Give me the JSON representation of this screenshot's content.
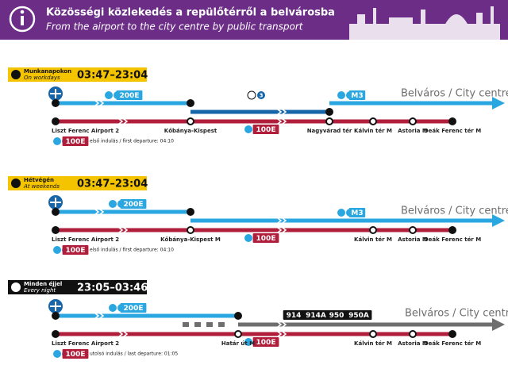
{
  "header": {
    "title": "Közösségi közlekedés a repülőtérről a belvárosba",
    "subtitle": "From the airport to the city centre by public transport"
  },
  "sections": [
    {
      "badge": {
        "hu": "Munkanapokon",
        "en": "On workdays"
      },
      "hours": "03:47–23:04",
      "upper_routes": [
        "200E",
        "3",
        "M3"
      ],
      "destination": "Belváros / City centre",
      "stops": [
        "Liszt Ferenc Airport 2",
        "Kőbánya-Kispest",
        "Nagyvárad tér",
        "Kálvin tér M",
        "Astoria M",
        "Deák Ferenc tér M"
      ],
      "lower_route": "100E",
      "footnote": {
        "route": "100E",
        "text": "első indulás / first departure: 04:10"
      }
    },
    {
      "badge": {
        "hu": "Hétvégén",
        "en": "At weekends"
      },
      "hours": "03:47–23:04",
      "upper_routes": [
        "200E",
        "M3"
      ],
      "destination": "Belváros / City centre",
      "stops": [
        "Liszt Ferenc Airport 2",
        "Kőbánya-Kispest M",
        "Kálvin tér M",
        "Astoria M",
        "Deák Ferenc tér M"
      ],
      "lower_route": "100E",
      "footnote": {
        "route": "100E",
        "text": "első indulás / first departure: 04:10"
      }
    },
    {
      "badge": {
        "hu": "Minden éjjel",
        "en": "Every night"
      },
      "hours": "23:05–03:46",
      "upper_routes": [
        "200E",
        "914",
        "914A",
        "950",
        "950A"
      ],
      "destination": "Belváros / City centre",
      "stops": [
        "Liszt Ferenc Airport 2",
        "Határ út M",
        "Kálvin tér M",
        "Astoria M",
        "Deák Ferenc tér M"
      ],
      "lower_route": "100E",
      "footnote": {
        "route": "100E",
        "text": "utolsó indulás / last departure: 01:05"
      }
    }
  ]
}
